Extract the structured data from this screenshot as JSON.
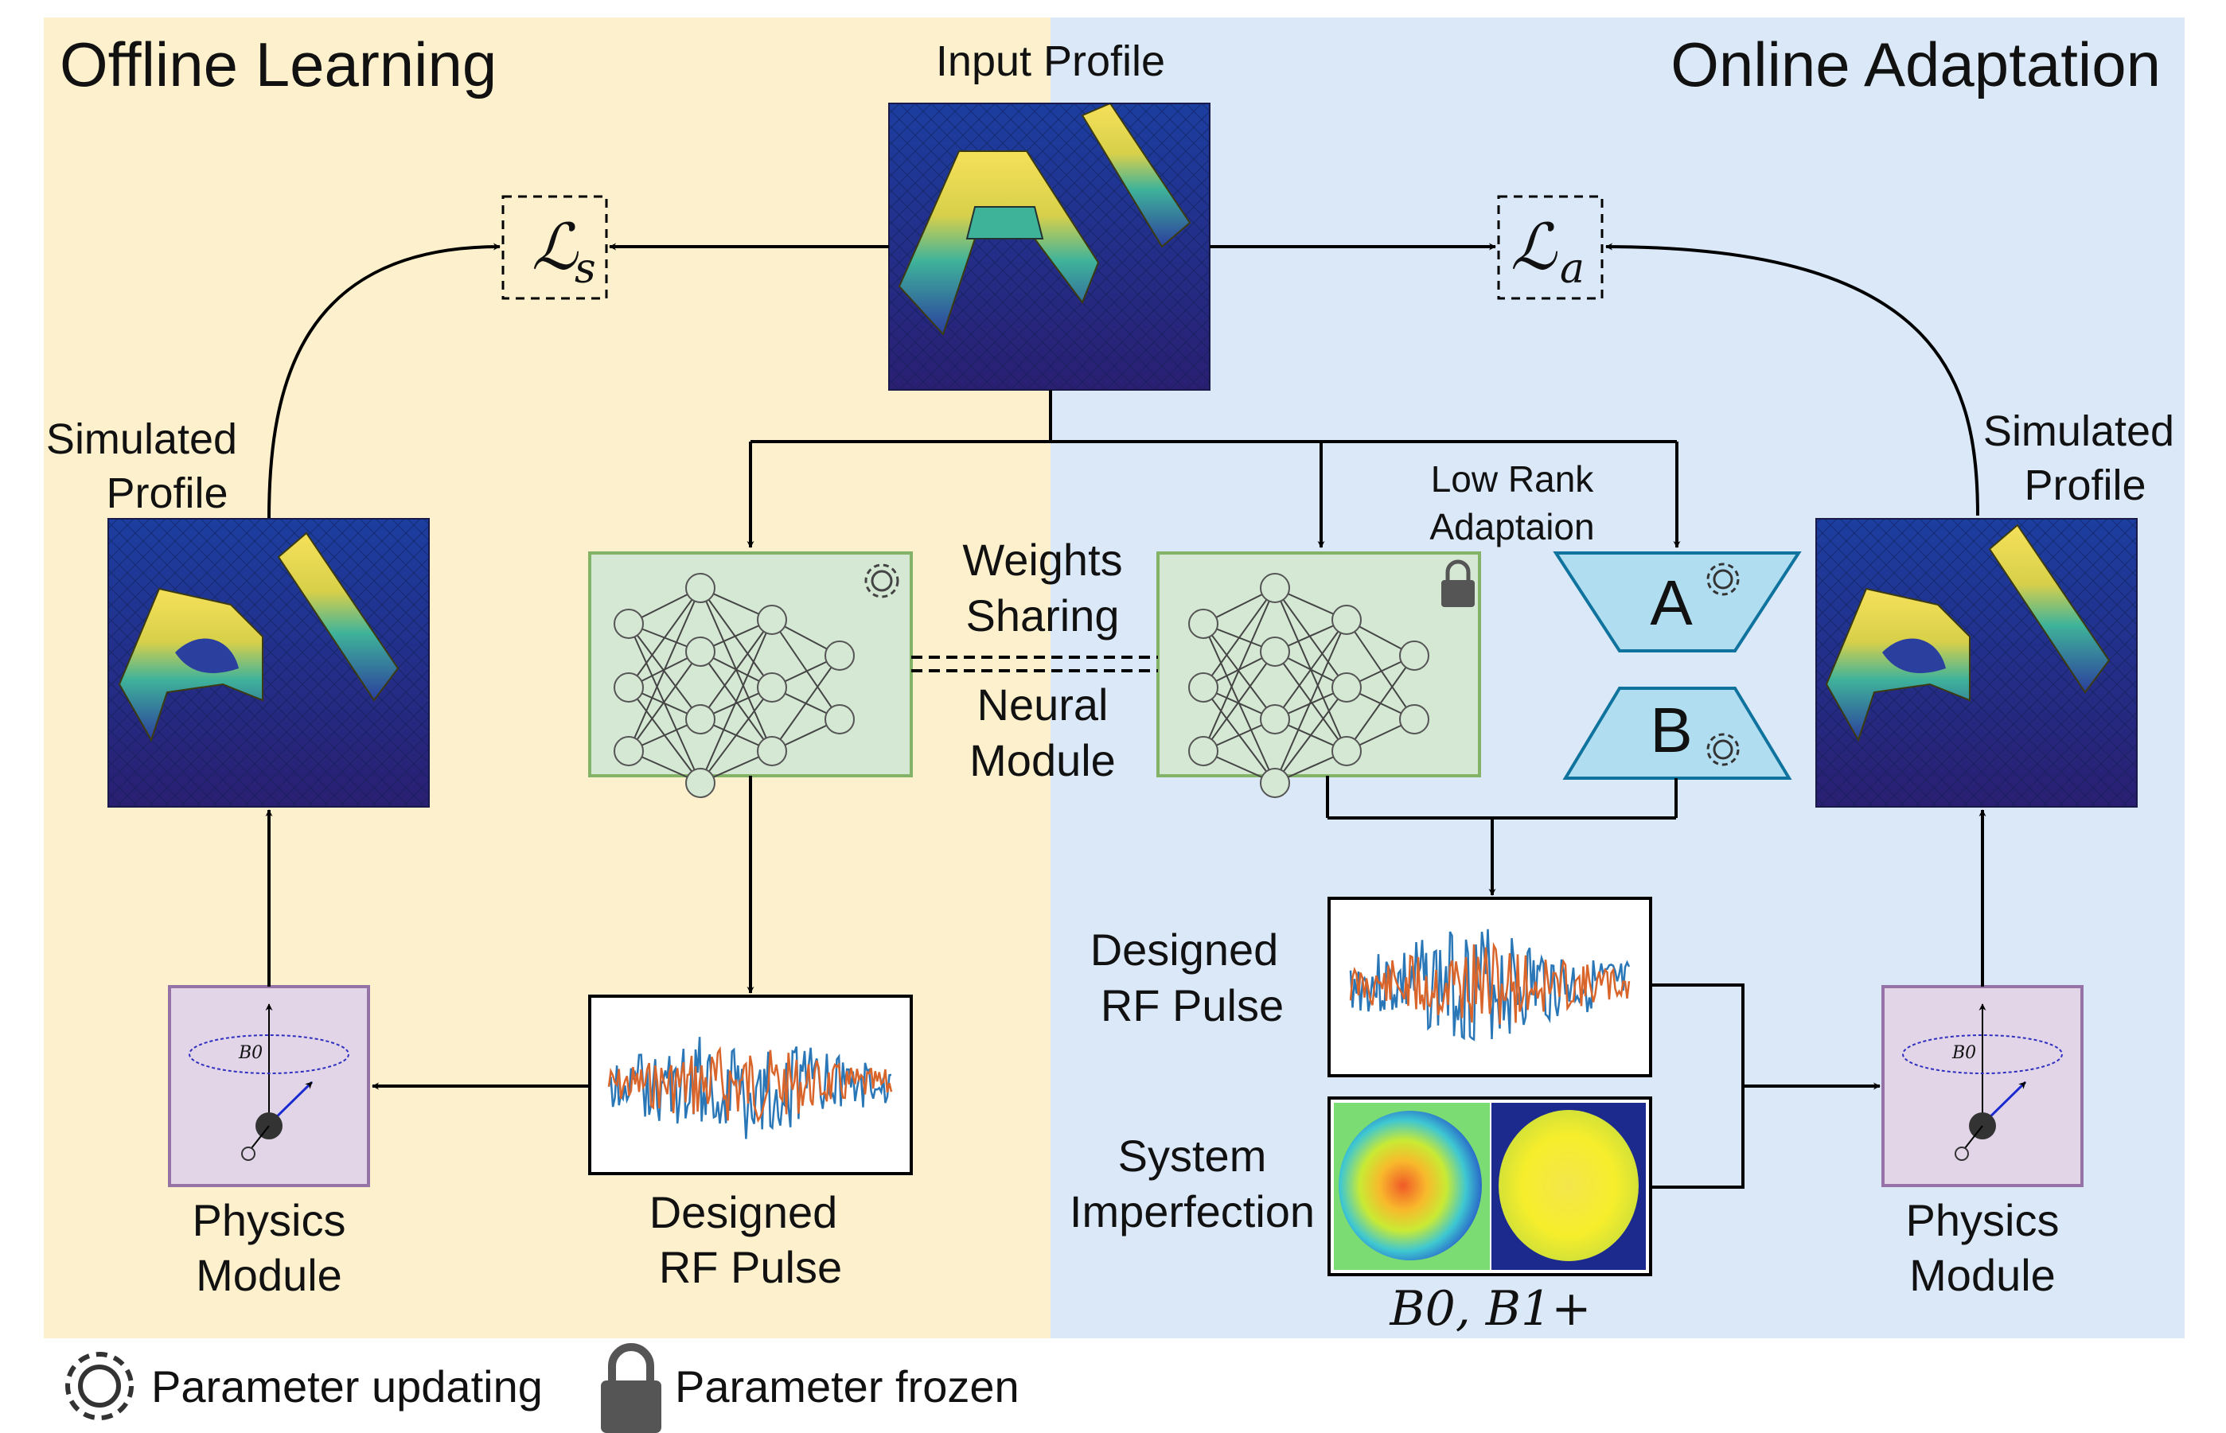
{
  "panels": {
    "offline_title": "Offline Learning",
    "online_title": "Online Adaptation"
  },
  "labels": {
    "input_profile": "Input Profile",
    "simulated_profile_left": [
      "Simulated",
      "Profile"
    ],
    "simulated_profile_right": [
      "Simulated",
      "Profile"
    ],
    "weights_sharing": [
      "Weights",
      "Sharing"
    ],
    "neural_module": [
      "Neural",
      "Module"
    ],
    "low_rank": [
      "Low Rank",
      "Adaptaion"
    ],
    "designed_rf_bottom": [
      "Designed",
      "RF Pulse"
    ],
    "designed_rf_right": [
      "Designed",
      "RF Pulse"
    ],
    "system_imperfection": [
      "System",
      "Imperfection"
    ],
    "physics_left": [
      "Physics",
      "Module"
    ],
    "physics_right": [
      "Physics",
      "Module"
    ],
    "b0_b1": "B0, B1+",
    "b0_small": "B0"
  },
  "losses": {
    "ls": "ℒ",
    "ls_sub": "s",
    "la": "ℒ",
    "la_sub": "a"
  },
  "lora": {
    "a": "A",
    "b": "B"
  },
  "legend": {
    "updating": "Parameter updating",
    "frozen": "Parameter frozen"
  },
  "colors": {
    "offline_bg": "#fdf0cc",
    "online_bg": "#dae8f8",
    "nn_fill": "#d5e8d4",
    "nn_stroke": "#82b366",
    "physics_fill": "#e1d5e7",
    "physics_stroke": "#9673a6",
    "lora_fill": "#b1ddf0",
    "lora_stroke": "#10739e"
  }
}
